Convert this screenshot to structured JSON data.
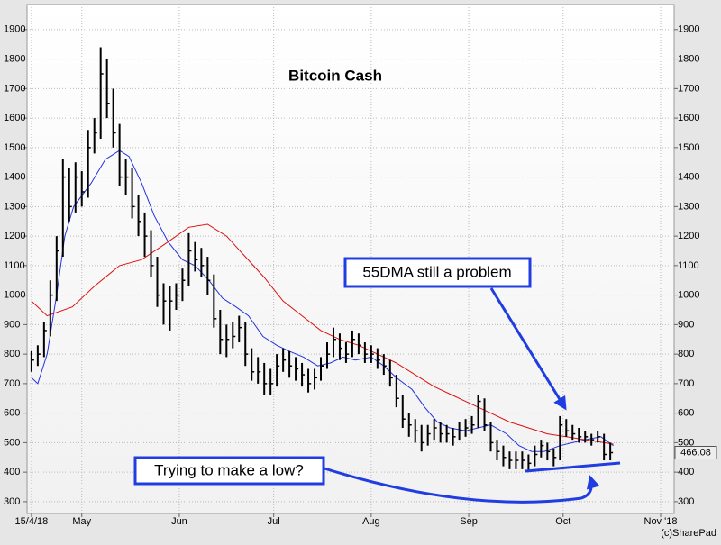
{
  "chart_data": {
    "type": "ohlc",
    "title": "Bitcoin Cash",
    "color": "#000000",
    "x": [
      0,
      2,
      4,
      6,
      8,
      10,
      12,
      14,
      16,
      18,
      20,
      22,
      24,
      26,
      28,
      30,
      32,
      34,
      36,
      38,
      40,
      42,
      44,
      46,
      48,
      50,
      52,
      54,
      56,
      58,
      60,
      62,
      64,
      66,
      68,
      70,
      72,
      74,
      76,
      78,
      80,
      82,
      84,
      86,
      88,
      90,
      92,
      94,
      96,
      98,
      100,
      102,
      104,
      106,
      108,
      110,
      112,
      114,
      116,
      118,
      120,
      122,
      124,
      126,
      128,
      130,
      132,
      134,
      136,
      138,
      140,
      142,
      144,
      146,
      148,
      150,
      152,
      154,
      156,
      158,
      160,
      162,
      164,
      166,
      168,
      170,
      172,
      174,
      176,
      178,
      180,
      182,
      184
    ],
    "high": [
      810,
      830,
      910,
      1050,
      1200,
      1460,
      1430,
      1450,
      1420,
      1560,
      1600,
      1840,
      1800,
      1700,
      1580,
      1460,
      1430,
      1340,
      1280,
      1220,
      1130,
      1040,
      1030,
      1040,
      1090,
      1210,
      1180,
      1160,
      1130,
      1070,
      950,
      900,
      910,
      930,
      910,
      820,
      790,
      770,
      750,
      800,
      820,
      810,
      790,
      770,
      750,
      750,
      790,
      840,
      890,
      870,
      840,
      880,
      870,
      840,
      830,
      820,
      800,
      780,
      730,
      660,
      600,
      580,
      560,
      560,
      580,
      570,
      560,
      550,
      570,
      580,
      590,
      660,
      650,
      570,
      510,
      490,
      470,
      470,
      470,
      460,
      490,
      510,
      500,
      480,
      590,
      580,
      560,
      550,
      540,
      530,
      540,
      530,
      500
    ],
    "low": [
      740,
      760,
      790,
      860,
      980,
      1130,
      1250,
      1280,
      1300,
      1330,
      1480,
      1530,
      1600,
      1500,
      1370,
      1340,
      1260,
      1200,
      1130,
      1060,
      960,
      900,
      880,
      950,
      980,
      1030,
      1080,
      1060,
      1000,
      890,
      800,
      790,
      820,
      840,
      760,
      710,
      700,
      660,
      660,
      690,
      740,
      720,
      710,
      690,
      670,
      680,
      710,
      750,
      790,
      780,
      770,
      790,
      800,
      770,
      770,
      750,
      730,
      690,
      620,
      550,
      520,
      500,
      470,
      490,
      510,
      500,
      500,
      490,
      510,
      520,
      530,
      550,
      540,
      470,
      440,
      420,
      410,
      410,
      410,
      400,
      420,
      450,
      440,
      420,
      440,
      520,
      510,
      500,
      500,
      490,
      500,
      440,
      440
    ],
    "close": [
      780,
      800,
      880,
      1000,
      1150,
      1400,
      1300,
      1400,
      1350,
      1500,
      1550,
      1750,
      1650,
      1550,
      1400,
      1400,
      1300,
      1250,
      1200,
      1100,
      1000,
      980,
      980,
      1000,
      1050,
      1150,
      1120,
      1100,
      1050,
      920,
      850,
      850,
      860,
      890,
      800,
      740,
      740,
      700,
      700,
      760,
      780,
      760,
      750,
      730,
      700,
      720,
      760,
      800,
      850,
      820,
      800,
      850,
      830,
      800,
      800,
      780,
      760,
      720,
      650,
      580,
      560,
      540,
      500,
      530,
      550,
      530,
      530,
      520,
      540,
      550,
      560,
      640,
      560,
      500,
      470,
      450,
      440,
      440,
      440,
      430,
      460,
      490,
      470,
      450,
      560,
      540,
      530,
      520,
      520,
      510,
      520,
      460,
      466.08
    ],
    "lines": [
      {
        "color": "#2233dd",
        "x": [
          0,
          2,
          5,
          8,
          10.6,
          13.4,
          19,
          23.5,
          28,
          31,
          35,
          39,
          43.5,
          48,
          52,
          56.4,
          60.7,
          65,
          69,
          73.6,
          78,
          82,
          86.5,
          91,
          95,
          99,
          103,
          108,
          112,
          116,
          121,
          125,
          129,
          133,
          138,
          142,
          146,
          151,
          155,
          159,
          163,
          168,
          172,
          176,
          181,
          185
        ],
        "values": [
          720,
          700,
          800,
          1000,
          1200,
          1300,
          1380,
          1460,
          1490,
          1470,
          1380,
          1270,
          1180,
          1120,
          1100,
          1050,
          990,
          960,
          930,
          860,
          830,
          810,
          790,
          760,
          770,
          790,
          780,
          790,
          760,
          720,
          680,
          620,
          570,
          550,
          540,
          550,
          560,
          530,
          490,
          470,
          470,
          490,
          500,
          510,
          520,
          490
        ]
      },
      {
        "color": "#dd1111",
        "x": [
          0,
          5,
          13,
          20,
          28,
          35,
          42,
          50,
          56,
          62,
          68,
          74,
          80,
          86,
          92,
          98,
          104,
          110,
          116,
          122,
          128,
          134,
          140,
          146,
          152,
          158,
          164,
          170,
          176,
          182,
          185
        ],
        "values": [
          980,
          930,
          960,
          1030,
          1100,
          1120,
          1170,
          1230,
          1240,
          1200,
          1130,
          1060,
          980,
          930,
          880,
          850,
          830,
          800,
          770,
          730,
          690,
          660,
          630,
          600,
          570,
          550,
          530,
          520,
          510,
          500,
          495
        ]
      }
    ],
    "xlim": [
      -1.4,
      204.3
    ],
    "xticks": [
      {
        "value": 0,
        "label": "15/4/18"
      },
      {
        "value": 16,
        "label": "May"
      },
      {
        "value": 47,
        "label": "Jun"
      },
      {
        "value": 77,
        "label": "Jul"
      },
      {
        "value": 108,
        "label": "Aug"
      },
      {
        "value": 139,
        "label": "Sep"
      },
      {
        "value": 169,
        "label": "Oct"
      },
      {
        "value": 200,
        "label": "Nov '18"
      }
    ],
    "ylim": [
      260,
      1985
    ],
    "yticks": [
      300,
      400,
      500,
      600,
      700,
      800,
      900,
      1000,
      1100,
      1200,
      1300,
      1400,
      1500,
      1600,
      1700,
      1800,
      1900
    ],
    "grid": true,
    "annotations": [
      "55DMA still a problem",
      "Trying to make a low?"
    ],
    "watermark": "(c)SharePad"
  }
}
